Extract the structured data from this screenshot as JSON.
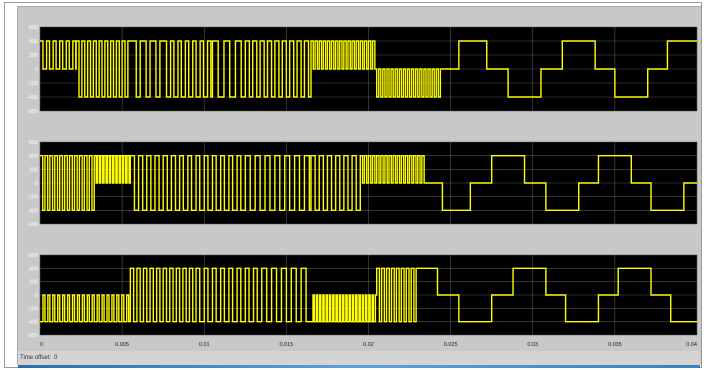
{
  "window": {
    "status_label": "Time offset:",
    "status_value": "0"
  },
  "colors": {
    "trace": "#ffff00",
    "plot_background": "#000000",
    "grid": "#555555",
    "tick_text": "#ffffff",
    "frame_background": "#c8c8c8"
  },
  "chart_data": [
    {
      "type": "line",
      "title": "",
      "xlabel": "",
      "ylabel": "",
      "xlim": [
        0,
        0.04
      ],
      "ylim": [
        -600,
        600
      ],
      "x_ticks": [
        "0",
        "0.005",
        "0.01",
        "0.015",
        "0.02",
        "0.025",
        "0.03",
        "0.035",
        "0.04"
      ],
      "y_ticks": [
        "600",
        "400",
        "200",
        "0",
        "-200",
        "-400",
        "-600"
      ],
      "grid": true,
      "series": [
        {
          "color": "#ffff00",
          "segments": [
            {
              "x0": 0.0,
              "x1": 0.0022,
              "level": 400,
              "sw": 0.0004,
              "alt": 0,
              "duty": 0.45
            },
            {
              "x0": 0.0022,
              "x1": 0.0055,
              "level": 400,
              "sw": 0.00035,
              "alt": -400,
              "duty": 0.5
            },
            {
              "x0": 0.0055,
              "x1": 0.0075,
              "level": 400,
              "sw": 0.0006,
              "alt": -400,
              "duty": 0.6
            },
            {
              "x0": 0.0075,
              "x1": 0.0105,
              "level": 400,
              "sw": 0.00045,
              "alt": -400,
              "duty": 0.45
            },
            {
              "x0": 0.0105,
              "x1": 0.0125,
              "level": 400,
              "sw": 0.0007,
              "alt": -400,
              "duty": 0.5
            },
            {
              "x0": 0.0125,
              "x1": 0.0165,
              "level": 400,
              "sw": 0.00045,
              "alt": -400,
              "duty": 0.55
            },
            {
              "x0": 0.0165,
              "x1": 0.0205,
              "level": 400,
              "sw": 0.00025,
              "alt": 0,
              "duty": 0.55
            },
            {
              "x0": 0.0205,
              "x1": 0.0245,
              "level": -400,
              "sw": 0.00025,
              "alt": 0,
              "duty": 0.5
            },
            {
              "x0": 0.0245,
              "x1": 0.0255,
              "level": 0,
              "sw": 0.001,
              "alt": 0,
              "duty": 1.0
            },
            {
              "x0": 0.0255,
              "x1": 0.0272,
              "level": 400,
              "sw": 0.004,
              "alt": 400,
              "duty": 1.0
            },
            {
              "x0": 0.0272,
              "x1": 0.0285,
              "level": 0,
              "sw": 0.004,
              "alt": 0,
              "duty": 1.0
            },
            {
              "x0": 0.0285,
              "x1": 0.0305,
              "level": -400,
              "sw": 0.004,
              "alt": -400,
              "duty": 1.0
            },
            {
              "x0": 0.0305,
              "x1": 0.0318,
              "level": 0,
              "sw": 0.004,
              "alt": 0,
              "duty": 1.0
            },
            {
              "x0": 0.0318,
              "x1": 0.0338,
              "level": 400,
              "sw": 0.004,
              "alt": 400,
              "duty": 1.0
            },
            {
              "x0": 0.0338,
              "x1": 0.035,
              "level": 0,
              "sw": 0.004,
              "alt": 0,
              "duty": 1.0
            },
            {
              "x0": 0.035,
              "x1": 0.037,
              "level": -400,
              "sw": 0.004,
              "alt": -400,
              "duty": 1.0
            },
            {
              "x0": 0.037,
              "x1": 0.0382,
              "level": 0,
              "sw": 0.004,
              "alt": 0,
              "duty": 1.0
            },
            {
              "x0": 0.0382,
              "x1": 0.04,
              "level": 400,
              "sw": 0.004,
              "alt": 400,
              "duty": 1.0
            }
          ]
        }
      ]
    },
    {
      "type": "line",
      "title": "",
      "xlabel": "",
      "ylabel": "",
      "xlim": [
        0,
        0.04
      ],
      "ylim": [
        -600,
        600
      ],
      "x_ticks": [
        "0",
        "0.005",
        "0.01",
        "0.015",
        "0.02",
        "0.025",
        "0.03",
        "0.035",
        "0.04"
      ],
      "y_ticks": [
        "600",
        "400",
        "200",
        "0",
        "-200",
        "-400",
        "-600"
      ],
      "grid": true,
      "series": [
        {
          "color": "#ffff00",
          "segments": [
            {
              "x0": 0.0,
              "x1": 0.0033,
              "level": 400,
              "sw": 0.0003,
              "alt": -400,
              "duty": 0.55
            },
            {
              "x0": 0.0033,
              "x1": 0.0055,
              "level": 400,
              "sw": 0.0002,
              "alt": 0,
              "duty": 0.6
            },
            {
              "x0": 0.0055,
              "x1": 0.0085,
              "level": 400,
              "sw": 0.0005,
              "alt": -400,
              "duty": 0.5
            },
            {
              "x0": 0.0085,
              "x1": 0.0125,
              "level": 400,
              "sw": 0.0005,
              "alt": -400,
              "duty": 0.45
            },
            {
              "x0": 0.0125,
              "x1": 0.0165,
              "level": 400,
              "sw": 0.0006,
              "alt": -400,
              "duty": 0.5
            },
            {
              "x0": 0.0165,
              "x1": 0.0195,
              "level": 400,
              "sw": 0.0005,
              "alt": -400,
              "duty": 0.5
            },
            {
              "x0": 0.0195,
              "x1": 0.0235,
              "level": 400,
              "sw": 0.00025,
              "alt": 0,
              "duty": 0.55
            },
            {
              "x0": 0.0235,
              "x1": 0.0245,
              "level": 0,
              "sw": 0.004,
              "alt": 0,
              "duty": 1.0
            },
            {
              "x0": 0.0245,
              "x1": 0.0262,
              "level": -400,
              "sw": 0.004,
              "alt": -400,
              "duty": 1.0
            },
            {
              "x0": 0.0262,
              "x1": 0.0275,
              "level": 0,
              "sw": 0.004,
              "alt": 0,
              "duty": 1.0
            },
            {
              "x0": 0.0275,
              "x1": 0.0295,
              "level": 400,
              "sw": 0.004,
              "alt": 400,
              "duty": 1.0
            },
            {
              "x0": 0.0295,
              "x1": 0.0308,
              "level": 0,
              "sw": 0.004,
              "alt": 0,
              "duty": 1.0
            },
            {
              "x0": 0.0308,
              "x1": 0.0328,
              "level": -400,
              "sw": 0.004,
              "alt": -400,
              "duty": 1.0
            },
            {
              "x0": 0.0328,
              "x1": 0.034,
              "level": 0,
              "sw": 0.004,
              "alt": 0,
              "duty": 1.0
            },
            {
              "x0": 0.034,
              "x1": 0.036,
              "level": 400,
              "sw": 0.004,
              "alt": 400,
              "duty": 1.0
            },
            {
              "x0": 0.036,
              "x1": 0.0372,
              "level": 0,
              "sw": 0.004,
              "alt": 0,
              "duty": 1.0
            },
            {
              "x0": 0.0372,
              "x1": 0.0392,
              "level": -400,
              "sw": 0.004,
              "alt": -400,
              "duty": 1.0
            },
            {
              "x0": 0.0392,
              "x1": 0.04,
              "level": 0,
              "sw": 0.004,
              "alt": 0,
              "duty": 1.0
            }
          ]
        }
      ]
    },
    {
      "type": "line",
      "title": "",
      "xlabel": "",
      "ylabel": "",
      "xlim": [
        0,
        0.04
      ],
      "ylim": [
        -600,
        600
      ],
      "x_ticks": [
        "0",
        "0.005",
        "0.01",
        "0.015",
        "0.02",
        "0.025",
        "0.03",
        "0.035",
        "0.04"
      ],
      "y_ticks": [
        "600",
        "400",
        "200",
        "0",
        "-200",
        "-400",
        "-600"
      ],
      "grid": true,
      "series": [
        {
          "color": "#ffff00",
          "segments": [
            {
              "x0": 0.0,
              "x1": 0.0055,
              "level": -400,
              "sw": 0.0003,
              "alt": 0,
              "duty": 0.6
            },
            {
              "x0": 0.0055,
              "x1": 0.0095,
              "level": 400,
              "sw": 0.0004,
              "alt": -400,
              "duty": 0.5
            },
            {
              "x0": 0.0095,
              "x1": 0.0135,
              "level": 400,
              "sw": 0.0005,
              "alt": -400,
              "duty": 0.45
            },
            {
              "x0": 0.0135,
              "x1": 0.0165,
              "level": 400,
              "sw": 0.0006,
              "alt": -400,
              "duty": 0.5
            },
            {
              "x0": 0.0165,
              "x1": 0.0205,
              "level": -400,
              "sw": 0.0002,
              "alt": 0,
              "duty": 0.6
            },
            {
              "x0": 0.0205,
              "x1": 0.023,
              "level": 400,
              "sw": 0.0003,
              "alt": -400,
              "duty": 0.55
            },
            {
              "x0": 0.023,
              "x1": 0.0242,
              "level": 400,
              "sw": 0.004,
              "alt": 400,
              "duty": 1.0
            },
            {
              "x0": 0.0242,
              "x1": 0.0255,
              "level": 0,
              "sw": 0.004,
              "alt": 0,
              "duty": 1.0
            },
            {
              "x0": 0.0255,
              "x1": 0.0275,
              "level": -400,
              "sw": 0.004,
              "alt": -400,
              "duty": 1.0
            },
            {
              "x0": 0.0275,
              "x1": 0.0288,
              "level": 0,
              "sw": 0.004,
              "alt": 0,
              "duty": 1.0
            },
            {
              "x0": 0.0288,
              "x1": 0.0308,
              "level": 400,
              "sw": 0.004,
              "alt": 400,
              "duty": 1.0
            },
            {
              "x0": 0.0308,
              "x1": 0.032,
              "level": 0,
              "sw": 0.004,
              "alt": 0,
              "duty": 1.0
            },
            {
              "x0": 0.032,
              "x1": 0.034,
              "level": -400,
              "sw": 0.004,
              "alt": -400,
              "duty": 1.0
            },
            {
              "x0": 0.034,
              "x1": 0.0352,
              "level": 0,
              "sw": 0.004,
              "alt": 0,
              "duty": 1.0
            },
            {
              "x0": 0.0352,
              "x1": 0.0372,
              "level": 400,
              "sw": 0.004,
              "alt": 400,
              "duty": 1.0
            },
            {
              "x0": 0.0372,
              "x1": 0.0384,
              "level": 0,
              "sw": 0.004,
              "alt": 0,
              "duty": 1.0
            },
            {
              "x0": 0.0384,
              "x1": 0.04,
              "level": -400,
              "sw": 0.004,
              "alt": -400,
              "duty": 1.0
            }
          ]
        }
      ]
    }
  ]
}
